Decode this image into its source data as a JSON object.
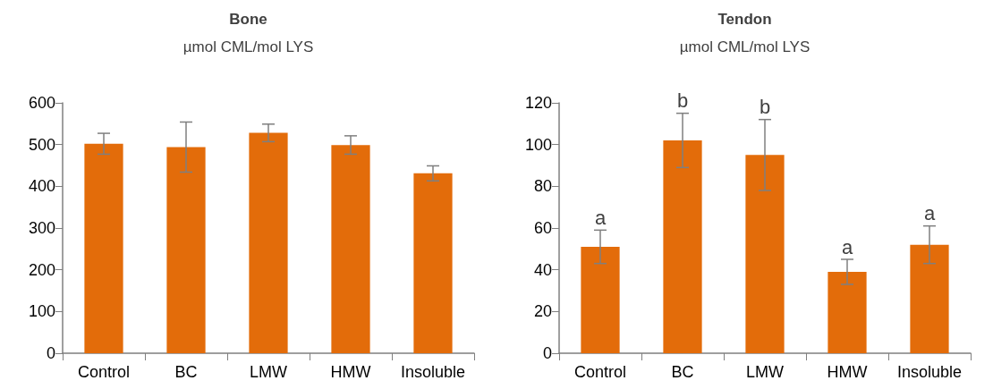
{
  "chart_data": [
    {
      "type": "bar",
      "title": "Bone",
      "subtitle": "µmol CML/mol LYS",
      "categories": [
        "Control",
        "BC",
        "LMW",
        "HMW",
        "Insoluble"
      ],
      "values": [
        502,
        494,
        528,
        499,
        431
      ],
      "errors": [
        25,
        60,
        21,
        22,
        18
      ],
      "color": "#e36c0a",
      "ylim": [
        0,
        600
      ],
      "yticks": [
        0,
        100,
        200,
        300,
        400,
        500,
        600
      ],
      "grid": false
    },
    {
      "type": "bar",
      "title": "Tendon",
      "subtitle": "µmol CML/mol LYS",
      "categories": [
        "Control",
        "BC",
        "LMW",
        "HMW",
        "Insoluble"
      ],
      "values": [
        51,
        102,
        95,
        39,
        52
      ],
      "errors": [
        8,
        13,
        17,
        6,
        9
      ],
      "color": "#e36c0a",
      "ylim": [
        0,
        120
      ],
      "yticks": [
        0,
        20,
        40,
        60,
        80,
        100,
        120
      ],
      "grid": false,
      "annotations": [
        {
          "text": "a",
          "x": "Control",
          "y": 59
        },
        {
          "text": "b",
          "x": "BC",
          "y": 115
        },
        {
          "text": "b",
          "x": "LMW",
          "y": 112
        },
        {
          "text": "a",
          "x": "HMW",
          "y": 45
        },
        {
          "text": "a",
          "x": "Insoluble",
          "y": 61
        }
      ]
    }
  ]
}
